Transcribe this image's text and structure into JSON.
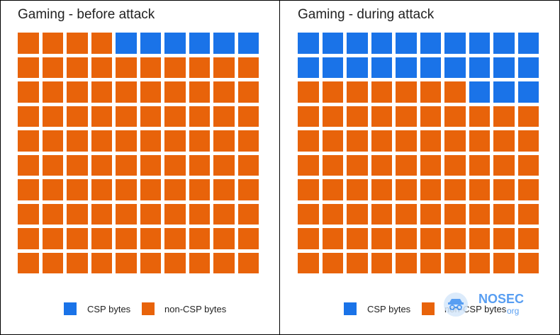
{
  "chart_data": [
    {
      "type": "waffle",
      "title": "Gaming - before attack",
      "grid": {
        "rows": 10,
        "cols": 10
      },
      "series": [
        {
          "name": "CSP bytes",
          "value": 6,
          "color": "#1a73e8"
        },
        {
          "name": "non-CSP bytes",
          "value": 94,
          "color": "#e8630a"
        }
      ]
    },
    {
      "type": "waffle",
      "title": "Gaming - during attack",
      "grid": {
        "rows": 10,
        "cols": 10
      },
      "series": [
        {
          "name": "CSP bytes",
          "value": 23,
          "color": "#1a73e8"
        },
        {
          "name": "non-CSP bytes",
          "value": 77,
          "color": "#e8630a"
        }
      ]
    }
  ],
  "legend": {
    "csp_label": "CSP bytes",
    "non_csp_label": "non-CSP bytes"
  },
  "watermark": {
    "brand": "NOSEC",
    "suffix": "org",
    "color": "#3b8ef0"
  }
}
